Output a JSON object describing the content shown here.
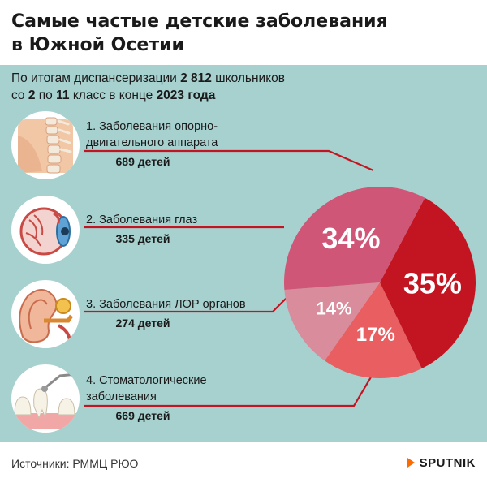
{
  "title": [
    "Самые частые детские заболевания",
    "в Южной Осетии"
  ],
  "subtitle": {
    "t1": "По итогам диспансеризации ",
    "b1": "2 812",
    "t2": " школьников",
    "t3": "со ",
    "b2": "2",
    "t4": " по ",
    "b3": "11",
    "t5": " класс в конце ",
    "b4": "2023 года"
  },
  "items": [
    {
      "label": [
        "1. Заболевания опорно-",
        "двигательного аппарата"
      ],
      "count": "689 детей",
      "icon": "spine-icon"
    },
    {
      "label": [
        "2. Заболевания глаз"
      ],
      "count": "335 детей",
      "icon": "eye-icon"
    },
    {
      "label": [
        "3. Заболевания ЛОР органов"
      ],
      "count": "274 детей",
      "icon": "ear-icon"
    },
    {
      "label": [
        "4. Стоматологические",
        "заболевания"
      ],
      "count": "669 детей",
      "icon": "tooth-icon"
    }
  ],
  "chart_data": {
    "type": "pie",
    "values": [
      35,
      17,
      14,
      34
    ],
    "labels": [
      "35%",
      "17%",
      "14%",
      "34%"
    ],
    "colors": [
      "#c21521",
      "#e85e61",
      "#d98c9b",
      "#d05677"
    ]
  },
  "colors": {
    "panel": "#a7d1cf",
    "leader": "#c21521",
    "brand": "#ff6a00"
  },
  "footer": "Источники: РММЦ РЮО",
  "brand": "SPUTNIK"
}
